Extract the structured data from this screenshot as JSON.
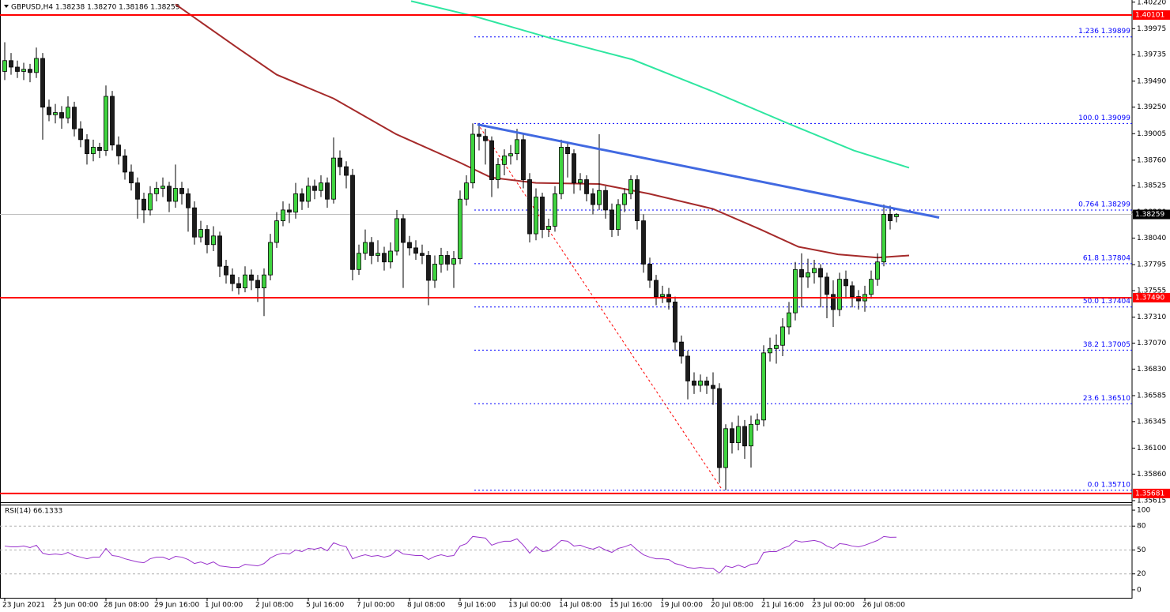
{
  "chart_data": {
    "type": "candlestick",
    "title": "GBPUSD,H4  1.38238 1.38270 1.38186 1.38259",
    "bull_color": "#3fd43f",
    "bear_color": "#1c1c1c",
    "categories": [
      "23 Jun 2021",
      null,
      null,
      null,
      null,
      null,
      null,
      null,
      "25 Jun 00:00",
      null,
      null,
      null,
      null,
      null,
      null,
      null,
      "28 Jun 08:00",
      null,
      null,
      null,
      null,
      null,
      null,
      null,
      "29 Jun 16:00",
      null,
      null,
      null,
      null,
      null,
      null,
      null,
      "1 Jul 00:00",
      null,
      null,
      null,
      null,
      null,
      null,
      null,
      "2 Jul 08:00",
      null,
      null,
      null,
      null,
      null,
      null,
      null,
      "5 Jul 16:00",
      null,
      null,
      null,
      null,
      null,
      null,
      null,
      "7 Jul 00:00",
      null,
      null,
      null,
      null,
      null,
      null,
      null,
      "8 Jul 08:00",
      null,
      null,
      null,
      null,
      null,
      null,
      null,
      "9 Jul 16:00",
      null,
      null,
      null,
      null,
      null,
      null,
      null,
      "13 Jul 00:00",
      null,
      null,
      null,
      null,
      null,
      null,
      null,
      "14 Jul 08:00",
      null,
      null,
      null,
      null,
      null,
      null,
      null,
      "15 Jul 16:00",
      null,
      null,
      null,
      null,
      null,
      null,
      null,
      "19 Jul 00:00",
      null,
      null,
      null,
      null,
      null,
      null,
      null,
      "20 Jul 08:00",
      null,
      null,
      null,
      null,
      null,
      null,
      null,
      "21 Jul 16:00",
      null,
      null,
      null,
      null,
      null,
      null,
      null,
      "23 Jul 00:00",
      null,
      null,
      null,
      null,
      null,
      null,
      null,
      "26 Jul 08:00",
      null,
      null,
      null,
      null,
      null
    ],
    "candles": [
      [
        1.3958,
        1.3985,
        1.395,
        1.3968
      ],
      [
        1.3968,
        1.3975,
        1.3955,
        1.3962
      ],
      [
        1.3962,
        1.3968,
        1.3952,
        1.3958
      ],
      [
        1.3958,
        1.3966,
        1.395,
        1.396
      ],
      [
        1.396,
        1.3965,
        1.3948,
        1.3957
      ],
      [
        1.3957,
        1.398,
        1.3952,
        1.397
      ],
      [
        1.397,
        1.3975,
        1.3895,
        1.3925
      ],
      [
        1.3925,
        1.3932,
        1.3912,
        1.3918
      ],
      [
        1.3918,
        1.3928,
        1.391,
        1.392
      ],
      [
        1.392,
        1.3926,
        1.3905,
        1.3915
      ],
      [
        1.3915,
        1.3935,
        1.391,
        1.3925
      ],
      [
        1.3925,
        1.393,
        1.3898,
        1.3905
      ],
      [
        1.3905,
        1.3912,
        1.3888,
        1.3895
      ],
      [
        1.3895,
        1.39,
        1.3872,
        1.3882
      ],
      [
        1.3882,
        1.3895,
        1.3875,
        1.3888
      ],
      [
        1.3888,
        1.3892,
        1.3878,
        1.3885
      ],
      [
        1.3885,
        1.3945,
        1.388,
        1.3935
      ],
      [
        1.3935,
        1.394,
        1.3885,
        1.389
      ],
      [
        1.389,
        1.3898,
        1.3872,
        1.388
      ],
      [
        1.388,
        1.3886,
        1.3858,
        1.3865
      ],
      [
        1.3865,
        1.3872,
        1.3848,
        1.3855
      ],
      [
        1.3855,
        1.386,
        1.3822,
        1.384
      ],
      [
        1.384,
        1.3846,
        1.3818,
        1.383
      ],
      [
        1.383,
        1.3852,
        1.3825,
        1.3845
      ],
      [
        1.3845,
        1.3856,
        1.3838,
        1.385
      ],
      [
        1.385,
        1.386,
        1.3842,
        1.3852
      ],
      [
        1.3852,
        1.3856,
        1.3828,
        1.3838
      ],
      [
        1.3838,
        1.3872,
        1.3832,
        1.385
      ],
      [
        1.385,
        1.3856,
        1.3835,
        1.3845
      ],
      [
        1.3845,
        1.385,
        1.381,
        1.3832
      ],
      [
        1.3832,
        1.3838,
        1.3798,
        1.3805
      ],
      [
        1.3805,
        1.382,
        1.38,
        1.3812
      ],
      [
        1.3812,
        1.3816,
        1.379,
        1.3798
      ],
      [
        1.3798,
        1.3815,
        1.3792,
        1.3806
      ],
      [
        1.3806,
        1.381,
        1.3768,
        1.3778
      ],
      [
        1.3778,
        1.3784,
        1.3762,
        1.377
      ],
      [
        1.377,
        1.3776,
        1.3755,
        1.3762
      ],
      [
        1.3762,
        1.3768,
        1.3752,
        1.3758
      ],
      [
        1.3758,
        1.3778,
        1.3754,
        1.377
      ],
      [
        1.377,
        1.3775,
        1.3756,
        1.3765
      ],
      [
        1.3765,
        1.377,
        1.3745,
        1.3758
      ],
      [
        1.3758,
        1.3776,
        1.3732,
        1.377
      ],
      [
        1.377,
        1.3808,
        1.3765,
        1.38
      ],
      [
        1.38,
        1.3828,
        1.3795,
        1.382
      ],
      [
        1.382,
        1.3838,
        1.3815,
        1.383
      ],
      [
        1.383,
        1.3836,
        1.3818,
        1.3828
      ],
      [
        1.3828,
        1.3855,
        1.3822,
        1.3845
      ],
      [
        1.3845,
        1.385,
        1.383,
        1.3838
      ],
      [
        1.3838,
        1.386,
        1.3832,
        1.3852
      ],
      [
        1.3852,
        1.3858,
        1.384,
        1.3848
      ],
      [
        1.3848,
        1.3862,
        1.3842,
        1.3855
      ],
      [
        1.3855,
        1.386,
        1.3832,
        1.384
      ],
      [
        1.384,
        1.3897,
        1.3836,
        1.3878
      ],
      [
        1.3878,
        1.3885,
        1.3862,
        1.387
      ],
      [
        1.387,
        1.3875,
        1.385,
        1.3862
      ],
      [
        1.3862,
        1.3868,
        1.3765,
        1.3775
      ],
      [
        1.3775,
        1.3798,
        1.377,
        1.379
      ],
      [
        1.379,
        1.3812,
        1.3784,
        1.38
      ],
      [
        1.38,
        1.3805,
        1.378,
        1.3788
      ],
      [
        1.3788,
        1.3802,
        1.3782,
        1.379
      ],
      [
        1.379,
        1.3796,
        1.3774,
        1.3782
      ],
      [
        1.3782,
        1.38,
        1.3776,
        1.3792
      ],
      [
        1.3792,
        1.383,
        1.3788,
        1.3822
      ],
      [
        1.3822,
        1.3826,
        1.3758,
        1.38
      ],
      [
        1.38,
        1.3806,
        1.3788,
        1.3795
      ],
      [
        1.3795,
        1.3802,
        1.3784,
        1.379
      ],
      [
        1.379,
        1.3798,
        1.378,
        1.3788
      ],
      [
        1.3788,
        1.3792,
        1.3742,
        1.3765
      ],
      [
        1.3765,
        1.3788,
        1.3758,
        1.378
      ],
      [
        1.378,
        1.3795,
        1.3772,
        1.3788
      ],
      [
        1.3788,
        1.3792,
        1.3774,
        1.378
      ],
      [
        1.378,
        1.3792,
        1.3758,
        1.3785
      ],
      [
        1.3785,
        1.3848,
        1.378,
        1.384
      ],
      [
        1.384,
        1.3862,
        1.3834,
        1.3855
      ],
      [
        1.3855,
        1.391,
        1.385,
        1.39
      ],
      [
        1.39,
        1.3908,
        1.3885,
        1.3898
      ],
      [
        1.3898,
        1.3905,
        1.3872,
        1.3894
      ],
      [
        1.3894,
        1.3898,
        1.3842,
        1.3858
      ],
      [
        1.3858,
        1.3878,
        1.385,
        1.3872
      ],
      [
        1.3872,
        1.3886,
        1.3862,
        1.388
      ],
      [
        1.388,
        1.389,
        1.3872,
        1.3882
      ],
      [
        1.3882,
        1.3905,
        1.3876,
        1.3895
      ],
      [
        1.3895,
        1.39,
        1.385,
        1.3858
      ],
      [
        1.3858,
        1.3864,
        1.38,
        1.3808
      ],
      [
        1.3808,
        1.385,
        1.3802,
        1.3842
      ],
      [
        1.3842,
        1.3846,
        1.3804,
        1.3812
      ],
      [
        1.3812,
        1.3822,
        1.3805,
        1.3815
      ],
      [
        1.3815,
        1.3852,
        1.381,
        1.3845
      ],
      [
        1.3845,
        1.3895,
        1.384,
        1.3888
      ],
      [
        1.3888,
        1.3893,
        1.386,
        1.3882
      ],
      [
        1.3882,
        1.3886,
        1.3845,
        1.3855
      ],
      [
        1.3855,
        1.3864,
        1.3848,
        1.3858
      ],
      [
        1.3858,
        1.3862,
        1.3838,
        1.3845
      ],
      [
        1.3845,
        1.385,
        1.3826,
        1.3835
      ],
      [
        1.3835,
        1.39,
        1.383,
        1.3848
      ],
      [
        1.3848,
        1.3852,
        1.3822,
        1.383
      ],
      [
        1.383,
        1.3836,
        1.3805,
        1.3812
      ],
      [
        1.3812,
        1.384,
        1.3806,
        1.3835
      ],
      [
        1.3835,
        1.385,
        1.3828,
        1.3845
      ],
      [
        1.3845,
        1.3862,
        1.384,
        1.3858
      ],
      [
        1.3858,
        1.3862,
        1.3812,
        1.382
      ],
      [
        1.382,
        1.3826,
        1.3772,
        1.378
      ],
      [
        1.378,
        1.3786,
        1.3758,
        1.3765
      ],
      [
        1.3765,
        1.377,
        1.3742,
        1.375
      ],
      [
        1.375,
        1.376,
        1.3744,
        1.3752
      ],
      [
        1.3752,
        1.3758,
        1.3738,
        1.3745
      ],
      [
        1.3745,
        1.375,
        1.37,
        1.3708
      ],
      [
        1.3708,
        1.3714,
        1.3688,
        1.3695
      ],
      [
        1.3695,
        1.37,
        1.3655,
        1.3672
      ],
      [
        1.3672,
        1.368,
        1.366,
        1.3668
      ],
      [
        1.3668,
        1.3678,
        1.3662,
        1.3672
      ],
      [
        1.3672,
        1.3676,
        1.366,
        1.3668
      ],
      [
        1.3668,
        1.368,
        1.365,
        1.3665
      ],
      [
        1.3665,
        1.367,
        1.3578,
        1.3592
      ],
      [
        1.3592,
        1.3632,
        1.3571,
        1.3628
      ],
      [
        1.3628,
        1.3634,
        1.3605,
        1.3615
      ],
      [
        1.3615,
        1.364,
        1.3608,
        1.363
      ],
      [
        1.363,
        1.3636,
        1.36,
        1.3612
      ],
      [
        1.3612,
        1.364,
        1.3592,
        1.3632
      ],
      [
        1.3632,
        1.3642,
        1.3626,
        1.3636
      ],
      [
        1.3636,
        1.3705,
        1.363,
        1.3698
      ],
      [
        1.3698,
        1.3712,
        1.369,
        1.3702
      ],
      [
        1.3702,
        1.3715,
        1.3688,
        1.3705
      ],
      [
        1.3705,
        1.373,
        1.3695,
        1.3722
      ],
      [
        1.3722,
        1.3745,
        1.3715,
        1.3735
      ],
      [
        1.3735,
        1.3782,
        1.3728,
        1.3775
      ],
      [
        1.3775,
        1.379,
        1.374,
        1.3768
      ],
      [
        1.3768,
        1.3785,
        1.3758,
        1.3772
      ],
      [
        1.3772,
        1.3784,
        1.3762,
        1.3776
      ],
      [
        1.3776,
        1.378,
        1.374,
        1.3768
      ],
      [
        1.3768,
        1.3772,
        1.373,
        1.3752
      ],
      [
        1.3752,
        1.3765,
        1.3722,
        1.3738
      ],
      [
        1.3738,
        1.3772,
        1.3732,
        1.3766
      ],
      [
        1.3766,
        1.3774,
        1.3748,
        1.376
      ],
      [
        1.376,
        1.3764,
        1.374,
        1.375
      ],
      [
        1.375,
        1.3756,
        1.3738,
        1.3746
      ],
      [
        1.3746,
        1.376,
        1.3736,
        1.3752
      ],
      [
        1.3752,
        1.3774,
        1.3748,
        1.3766
      ],
      [
        1.3766,
        1.379,
        1.376,
        1.3782
      ],
      [
        1.3782,
        1.3835,
        1.3778,
        1.3826
      ],
      [
        1.3826,
        1.3834,
        1.3812,
        1.382
      ],
      [
        1.38238,
        1.3827,
        1.38186,
        1.38259
      ]
    ],
    "ylim": [
      1.356,
      1.4024
    ],
    "yticks": [
      {
        "value": 1.4022,
        "label": "1.40220"
      },
      1.39975,
      1.39735,
      {
        "value": 1.3949,
        "label": "1.39490"
      },
      {
        "value": 1.3925,
        "label": "1.39250"
      },
      1.39005,
      {
        "value": 1.3876,
        "label": "1.38760"
      },
      1.38525,
      {
        "value": 1.3828,
        "label": "1.38280"
      },
      {
        "value": 1.3804,
        "label": "1.38040"
      },
      1.37795,
      1.37555,
      {
        "value": 1.3731,
        "label": "1.37310"
      },
      {
        "value": 1.3707,
        "label": "1.37070"
      },
      {
        "value": 1.3683,
        "label": "1.36830"
      },
      1.36585,
      1.36345,
      {
        "value": 1.361,
        "label": "1.36100"
      },
      {
        "value": 1.3586,
        "label": "1.35860"
      },
      1.35615
    ],
    "levels": [
      {
        "value": 1.40101,
        "label": "1.40101",
        "color": "#ff0000"
      },
      {
        "value": 1.3749,
        "label": "1.37490",
        "color": "#ff0000"
      },
      {
        "value": 1.35681,
        "label": "1.35681",
        "color": "#ff0000"
      }
    ],
    "current_price": {
      "value": 1.38259,
      "label": "1.38259",
      "color": "#000000"
    },
    "ma_red": {
      "color": "#a52a2a",
      "x": [
        27,
        36.75,
        43,
        52,
        61.9,
        71.9,
        76.9,
        84,
        94,
        101.9,
        112,
        119.5,
        125.5,
        131.75,
        138,
        143
      ],
      "values": [
        1.402,
        1.398,
        1.3955,
        1.3933,
        1.39,
        1.3874,
        1.386,
        1.3855,
        1.3854,
        1.3845,
        1.3831,
        1.3812,
        1.3796,
        1.3789,
        1.3786,
        1.3788
      ]
    },
    "ma_green": {
      "color": "#2ee6a0",
      "x": [
        64.25,
        74.25,
        86.75,
        99.25,
        111.75,
        124.25,
        134.25,
        143
      ],
      "values": [
        1.4023,
        1.4009,
        1.3988,
        1.3969,
        1.394,
        1.3909,
        1.3885,
        1.3869
      ]
    },
    "trendline": {
      "color": "#4169e1",
      "x": [
        74.75,
        147.75
      ],
      "values": [
        1.3909,
        1.3823
      ]
    },
    "fib_line": {
      "color": "#ff0000",
      "x": [
        74.75,
        113.5
      ],
      "values": [
        1.39099,
        1.3571
      ]
    },
    "fib_color": "#0000ff",
    "fib_levels": [
      {
        "value": 1.39899,
        "label": "1.236 1.39899"
      },
      {
        "value": 1.39099,
        "label": "100.0 1.39099"
      },
      {
        "value": 1.38299,
        "label": "0.764 1.38299"
      },
      {
        "value": 1.37804,
        "label": "61.8 1.37804"
      },
      {
        "value": 1.37404,
        "label": "50.0 1.37404"
      },
      {
        "value": 1.37005,
        "label": "38.2 1.37005"
      },
      {
        "value": 1.3651,
        "label": "23.6 1.36510"
      },
      {
        "value": 1.3571,
        "label": "0.0 1.35710"
      }
    ],
    "rsi": {
      "label": "RSI(14) 66.1333",
      "color": "#9932cc",
      "ylim": [
        -10,
        106
      ],
      "yticks": [
        0,
        20,
        50,
        80,
        100
      ],
      "levels": [
        20,
        50,
        80
      ],
      "values": [
        55,
        54,
        54,
        55,
        53,
        56,
        46,
        44,
        45,
        44,
        47,
        43,
        41,
        39,
        41,
        41,
        52,
        43,
        42,
        39,
        37,
        35,
        34,
        39,
        41,
        41,
        38,
        42,
        41,
        38,
        33,
        35,
        32,
        35,
        30,
        29,
        28,
        28,
        32,
        31,
        30,
        33,
        40,
        44,
        46,
        45,
        50,
        48,
        52,
        51,
        53,
        49,
        59,
        56,
        54,
        39,
        42,
        44,
        42,
        43,
        41,
        43,
        50,
        45,
        44,
        43,
        43,
        38,
        42,
        44,
        42,
        43,
        55,
        58,
        67,
        66,
        65,
        56,
        59,
        61,
        61,
        64,
        56,
        46,
        54,
        48,
        49,
        55,
        62,
        61,
        55,
        56,
        53,
        51,
        54,
        50,
        47,
        52,
        54,
        57,
        50,
        44,
        41,
        39,
        39,
        38,
        33,
        31,
        28,
        27,
        28,
        27,
        27,
        21,
        30,
        28,
        31,
        28,
        32,
        33,
        47,
        48,
        48,
        52,
        55,
        62,
        60,
        61,
        62,
        60,
        55,
        52,
        58,
        57,
        55,
        54,
        56,
        59,
        62,
        67,
        66,
        66.1333
      ]
    }
  }
}
